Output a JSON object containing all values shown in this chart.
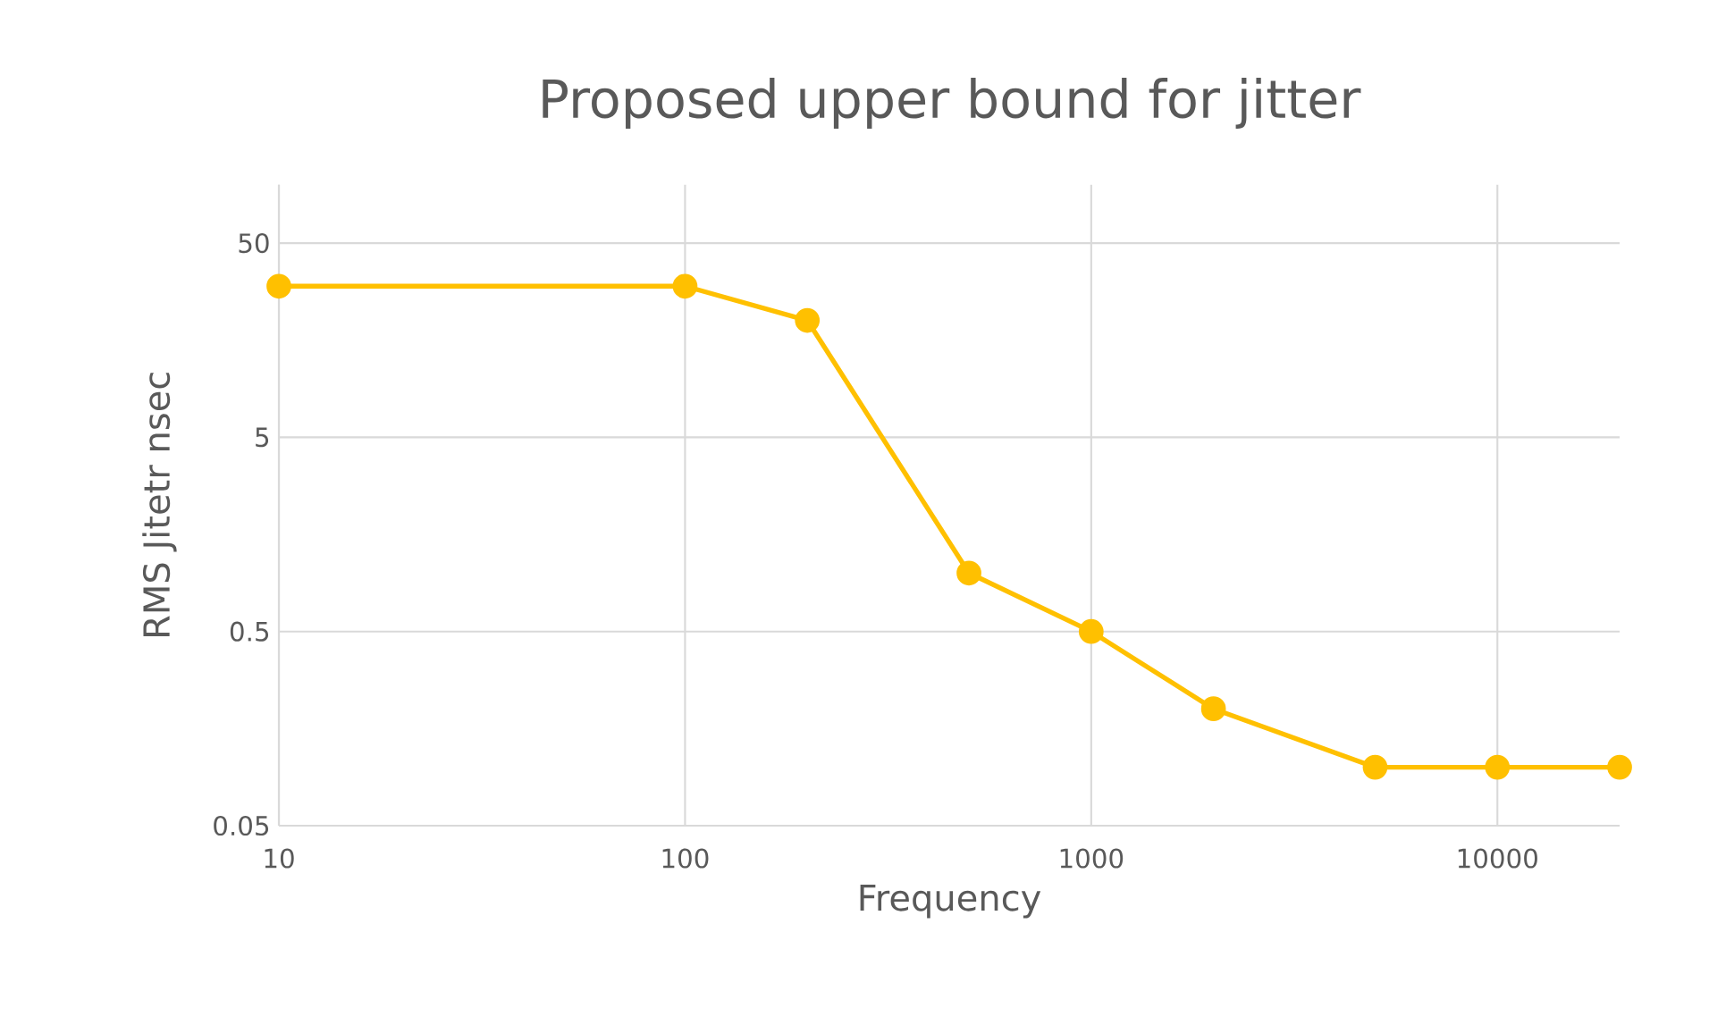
{
  "chart_data": {
    "type": "line",
    "title": "Proposed upper bound for jitter",
    "xlabel": "Frequency",
    "ylabel": "RMS Jitetr nsec",
    "x": [
      10,
      100,
      200,
      500,
      1000,
      2000,
      5000,
      10000,
      20000
    ],
    "series": [
      {
        "color": "#ffc000",
        "values": [
          30,
          30,
          20,
          1,
          0.5,
          0.2,
          0.1,
          0.1,
          0.1
        ]
      }
    ],
    "log": "xy",
    "xlim": [
      10,
      20000
    ],
    "ylim": [
      0.05,
      100
    ],
    "xticks": [
      10,
      100,
      1000,
      10000
    ],
    "yticks": [
      0.05,
      0.5,
      5,
      50
    ],
    "grid": true,
    "marker": "circle",
    "line_style": "solid"
  }
}
